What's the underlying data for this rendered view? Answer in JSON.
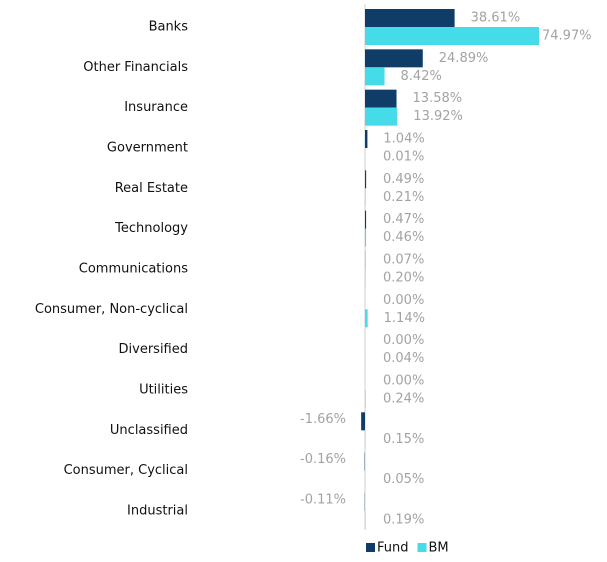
{
  "chart_data": {
    "type": "bar",
    "orientation": "horizontal",
    "categories": [
      "Banks",
      "Other Financials",
      "Insurance",
      "Government",
      "Real Estate",
      "Technology",
      "Communications",
      "Consumer, Non-cyclical",
      "Diversified",
      "Utilities",
      "Unclassified",
      "Consumer, Cyclical",
      "Industrial"
    ],
    "series": [
      {
        "name": "Fund",
        "color": "#0f3d68",
        "values": [
          38.61,
          24.89,
          13.58,
          1.04,
          0.49,
          0.47,
          0.07,
          0.0,
          0.0,
          0.0,
          -1.66,
          -0.16,
          -0.11
        ],
        "value_labels": [
          "38.61%",
          "24.89%",
          "13.58%",
          "1.04%",
          "0.49%",
          "0.47%",
          "0.07%",
          "0.00%",
          "0.00%",
          "0.00%",
          "-1.66%",
          "-0.16%",
          "-0.11%"
        ]
      },
      {
        "name": "BM",
        "color": "#46dbe8",
        "values": [
          74.97,
          8.42,
          13.92,
          0.01,
          0.21,
          0.46,
          0.2,
          1.14,
          0.04,
          0.24,
          0.15,
          0.05,
          0.19
        ],
        "value_labels": [
          "74.97%",
          "8.42%",
          "13.92%",
          "0.01%",
          "0.21%",
          "0.46%",
          "0.20%",
          "1.14%",
          "0.04%",
          "0.24%",
          "0.15%",
          "0.05%",
          "0.19%"
        ]
      }
    ],
    "legend": "bottom"
  }
}
